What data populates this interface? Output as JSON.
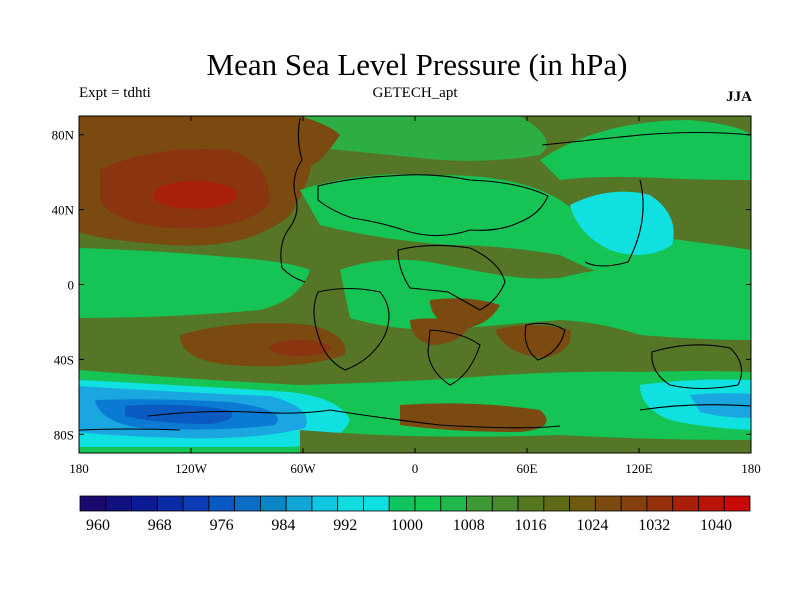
{
  "title": "Mean Sea Level Pressure (in hPa)",
  "left_label": "Expt = tdhti",
  "center_label": "GETECH_apt",
  "right_label": "JJA",
  "lat_labels": [
    "80N",
    "40N",
    "0",
    "40S",
    "80S"
  ],
  "lon_labels": [
    "180",
    "120W",
    "60W",
    "0",
    "60E",
    "120E",
    "180"
  ],
  "colorbar": {
    "labels": [
      "960",
      "968",
      "976",
      "984",
      "992",
      "1000",
      "1008",
      "1016",
      "1024",
      "1032",
      "1040"
    ],
    "colors": [
      "#1a0a6e",
      "#10107e",
      "#0c1a96",
      "#0a2aa6",
      "#0c3cb6",
      "#0a58c6",
      "#0a6ec6",
      "#0a86c6",
      "#12a6d6",
      "#10c6e0",
      "#10dede",
      "#0ee0e0",
      "#10c460",
      "#14c854",
      "#1fb84a",
      "#3e9a34",
      "#4a8a2e",
      "#55781e",
      "#5e6a16",
      "#6e5a10",
      "#7a4a10",
      "#86400e",
      "#94300c",
      "#a8200a",
      "#b81408",
      "#c80a06"
    ]
  },
  "map_colors": {
    "neutral": "#557626",
    "low_green": "#15c454",
    "mid_green": "#2cae45",
    "cyan": "#10e0e0",
    "light_blue": "#1aa6e0",
    "blue": "#0a7ad2",
    "deep_blue": "#0a5ac2",
    "brown": "#7a4a10",
    "red_brown": "#8a3410",
    "red": "#a8200a"
  }
}
